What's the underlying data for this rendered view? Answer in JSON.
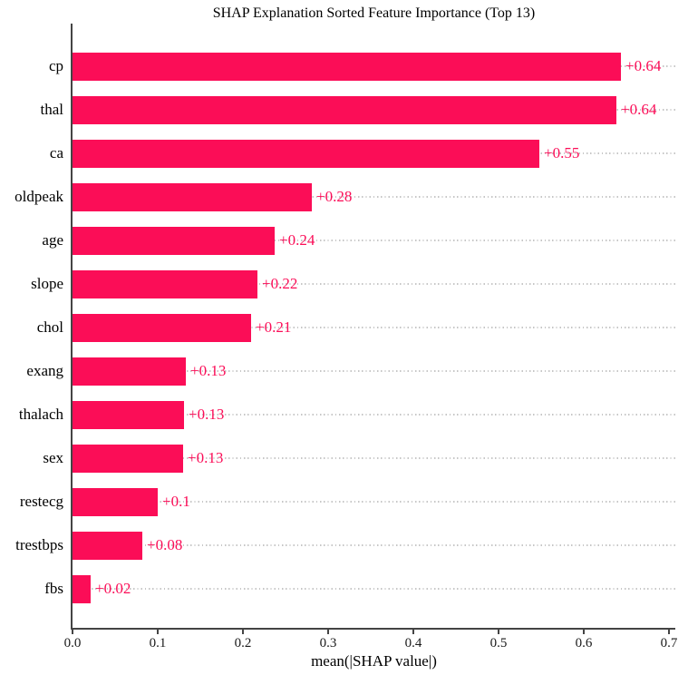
{
  "chart_data": {
    "type": "bar",
    "orientation": "horizontal",
    "title": "SHAP Explanation Sorted Feature Importance (Top 13)",
    "xlabel": "mean(|SHAP value|)",
    "categories": [
      "cp",
      "thal",
      "ca",
      "oldpeak",
      "age",
      "slope",
      "chol",
      "exang",
      "thalach",
      "sex",
      "restecg",
      "trestbps",
      "fbs"
    ],
    "values": [
      0.644,
      0.638,
      0.548,
      0.281,
      0.237,
      0.217,
      0.21,
      0.133,
      0.131,
      0.13,
      0.1,
      0.082,
      0.021
    ],
    "value_labels": [
      "+0.64",
      "+0.64",
      "+0.55",
      "+0.28",
      "+0.24",
      "+0.22",
      "+0.21",
      "+0.13",
      "+0.13",
      "+0.13",
      "+0.1",
      "+0.08",
      "+0.02"
    ],
    "xlim": [
      0,
      0.7
    ],
    "x_ticks": [
      "0.0",
      "0.1",
      "0.2",
      "0.3",
      "0.4",
      "0.5",
      "0.6",
      "0.7"
    ],
    "grid": "dotted horizontal line per row, behind bars",
    "legend_position": "none",
    "bar_color": "#fb0d57",
    "value_label_color": "#fb0d57",
    "axis_color": "#444444",
    "gridline_color": "#c6c6c6"
  }
}
